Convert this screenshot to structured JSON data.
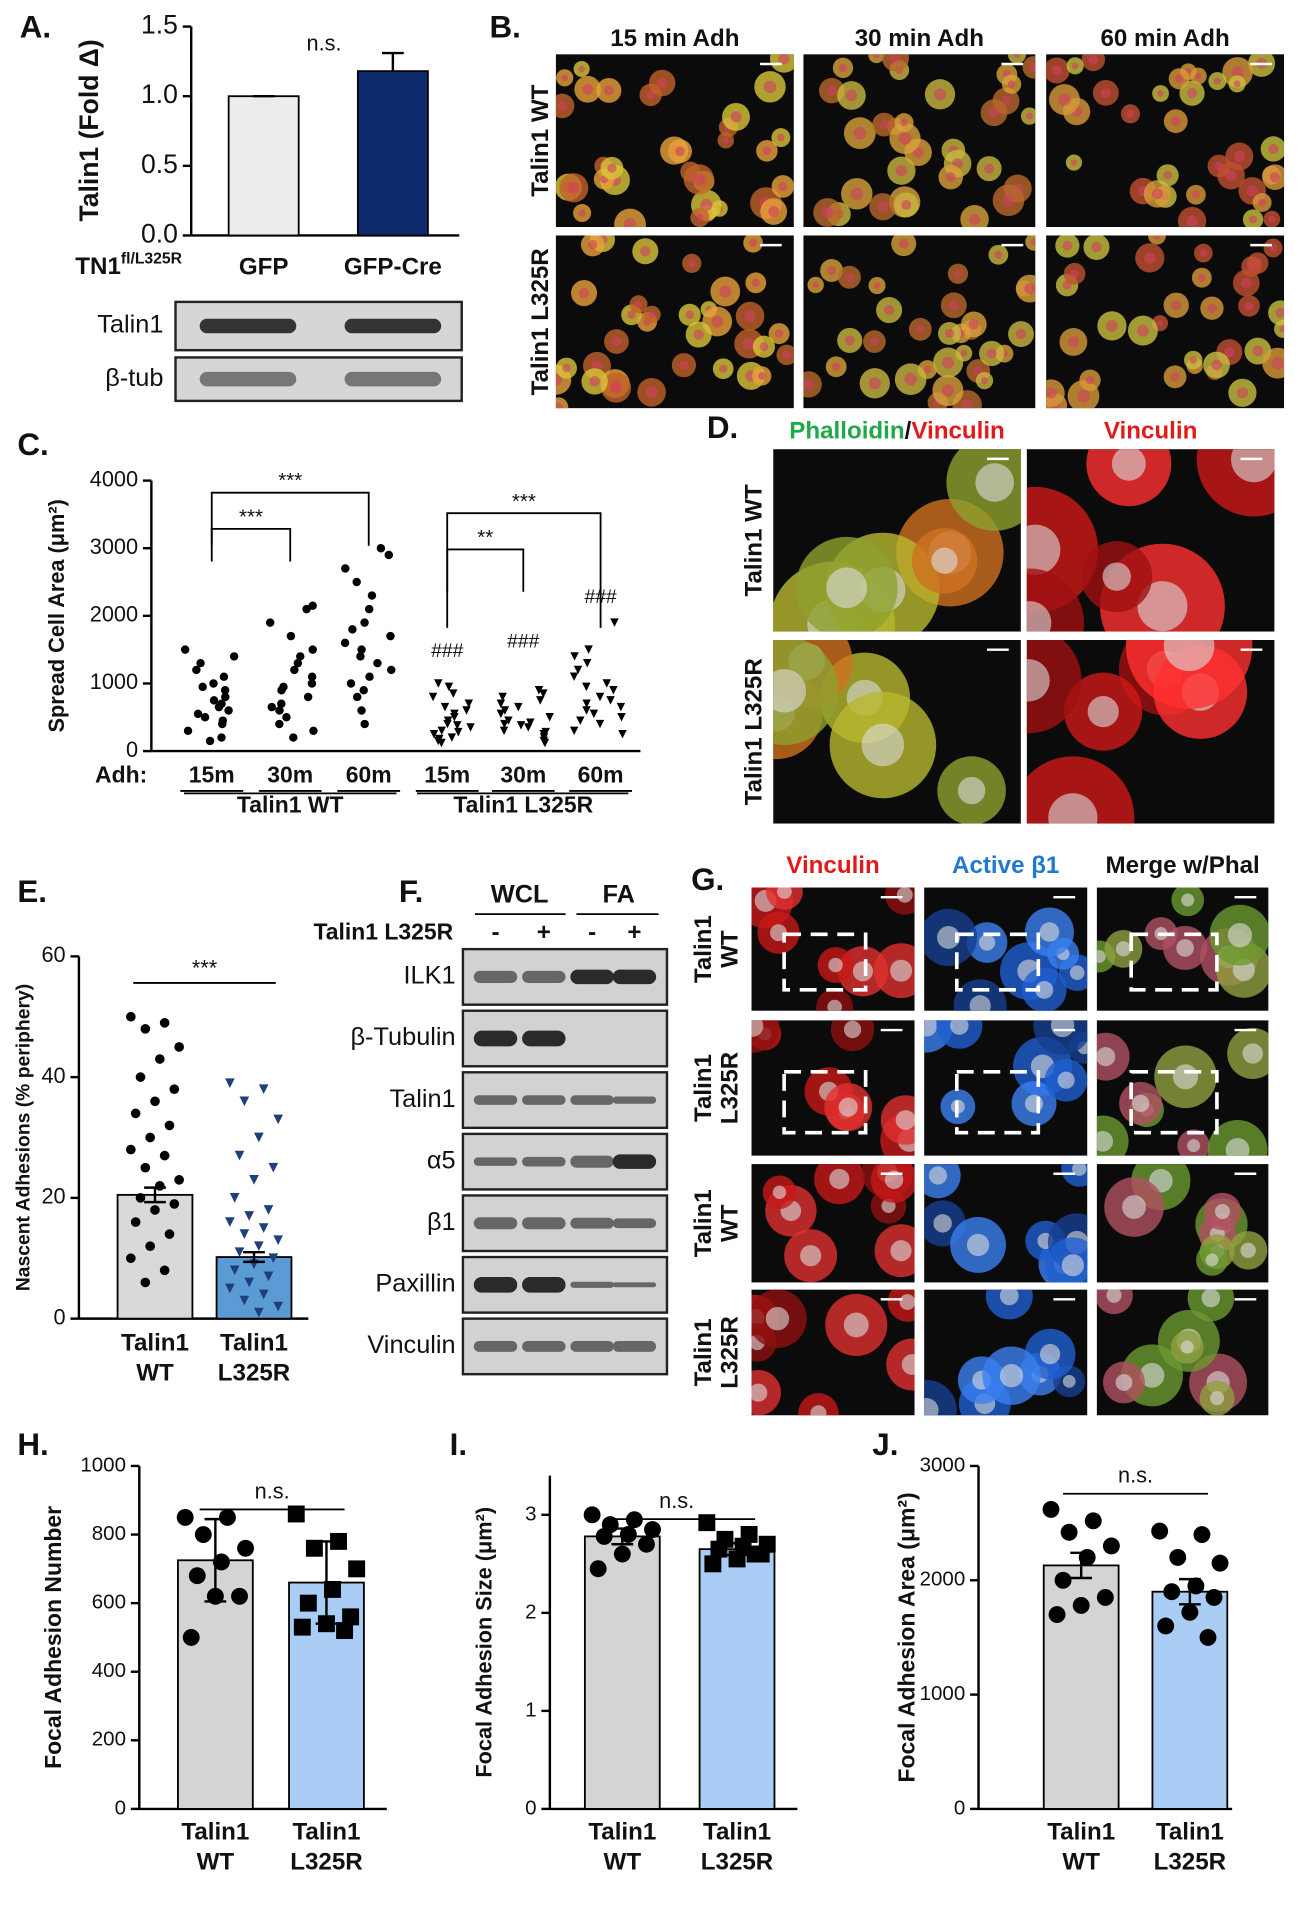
{
  "chart_data": [
    {
      "type": "bar",
      "panel": "A.",
      "ylabel": "Talin1 (Fold Δ)",
      "row_label": "TN1",
      "row_label_sup": "fl/L325R",
      "categories": [
        [
          "GFP"
        ],
        [
          "GFP-Cre"
        ]
      ],
      "values": [
        1.0,
        1.18
      ],
      "errors": [
        0,
        0.13
      ],
      "colors": [
        "#ececec",
        "#0c2a6b"
      ],
      "ylim": [
        0,
        1.5
      ],
      "yticks": [
        {
          "value": 0,
          "label": "0.0"
        },
        {
          "value": 0.5,
          "label": "0.5"
        },
        {
          "value": 1,
          "label": "1.0"
        },
        {
          "value": 1.5,
          "label": "1.5"
        }
      ],
      "annotations": [
        "n.s."
      ]
    },
    {
      "type": "strip",
      "panel": "C.",
      "ylabel": "Spread Cell Area (μm²)",
      "x_prefix": "Adh:",
      "categories": [
        "15m",
        "30m",
        "60m",
        "15m",
        "30m",
        "60m"
      ],
      "group_labels": [
        "Talin1 WT",
        "Talin1 L325R"
      ],
      "markers": [
        "circle",
        "circle",
        "circle",
        "triangle",
        "triangle",
        "triangle"
      ],
      "marker_color": "#000000",
      "points": [
        [
          1500,
          1400,
          1300,
          1200,
          1100,
          1000,
          950,
          900,
          800,
          750,
          700,
          650,
          600,
          550,
          500,
          450,
          400,
          300,
          200,
          150
        ],
        [
          2150,
          2100,
          1900,
          1700,
          1500,
          1400,
          1300,
          1200,
          1100,
          1000,
          950,
          900,
          800,
          700,
          650,
          600,
          500,
          400,
          300,
          200
        ],
        [
          3000,
          2900,
          2700,
          2500,
          2300,
          2100,
          1900,
          1800,
          1700,
          1600,
          1500,
          1400,
          1300,
          1200,
          1100,
          1000,
          900,
          800,
          600,
          400
        ],
        [
          1000,
          950,
          850,
          800,
          700,
          650,
          600,
          550,
          500,
          450,
          400,
          380,
          350,
          300,
          280,
          250,
          200,
          180,
          150,
          120
        ],
        [
          900,
          850,
          800,
          750,
          700,
          650,
          600,
          550,
          500,
          450,
          420,
          400,
          380,
          350,
          300,
          280,
          250,
          200,
          150,
          120
        ],
        [
          1900,
          1500,
          1400,
          1300,
          1200,
          1100,
          1000,
          950,
          900,
          800,
          750,
          700,
          650,
          600,
          550,
          500,
          450,
          400,
          300,
          250
        ]
      ],
      "ylim": [
        0,
        4000
      ],
      "yticks": [
        0,
        1000,
        2000,
        3000,
        4000
      ],
      "brackets": [
        "***",
        "***",
        "**",
        "***"
      ],
      "marks": [
        "###",
        "###",
        "###"
      ]
    },
    {
      "type": "bar",
      "panel": "E.",
      "ylabel": "Nascent Adhesions (% periphery)",
      "categories": [
        [
          "Talin1",
          "WT"
        ],
        [
          "Talin1",
          "L325R"
        ]
      ],
      "values": [
        20.5,
        10.2
      ],
      "errors": [
        1.2,
        0.8
      ],
      "colors": [
        "#d9d9d9",
        "#5b9bd5"
      ],
      "markers": [
        "circle",
        "triangle"
      ],
      "marker_colors": [
        "#000000",
        "#1f3f7a"
      ],
      "points": [
        [
          50,
          49,
          48,
          45,
          43,
          40,
          38,
          36,
          34,
          32,
          30,
          28,
          27,
          25,
          23,
          22,
          20,
          19,
          18,
          16,
          14,
          12,
          10,
          8,
          6
        ],
        [
          39,
          38,
          36,
          33,
          30,
          27,
          25,
          23,
          20,
          18,
          17,
          16,
          15,
          14,
          13,
          12,
          11,
          10,
          9,
          8,
          7,
          6,
          5,
          4,
          3,
          2,
          1
        ]
      ],
      "ylim": [
        0,
        60
      ],
      "yticks": [
        0,
        20,
        40,
        60
      ],
      "annotations": [
        "***"
      ]
    },
    {
      "type": "bar",
      "panel": "H.",
      "ylabel": "Focal Adhesion Number",
      "categories": [
        [
          "Talin1",
          "WT"
        ],
        [
          "Talin1",
          "L325R"
        ]
      ],
      "values": [
        725,
        660
      ],
      "errors": [
        120,
        120
      ],
      "colors": [
        "#d4d4d4",
        "#a9cdf5"
      ],
      "markers": [
        "circle",
        "square"
      ],
      "marker_colors": [
        "#000000",
        "#000000"
      ],
      "points": [
        [
          850,
          850,
          800,
          760,
          720,
          680,
          620,
          620,
          500
        ],
        [
          860,
          780,
          760,
          700,
          640,
          600,
          560,
          540,
          530,
          520
        ]
      ],
      "ylim": [
        0,
        1000
      ],
      "yticks": [
        0,
        200,
        400,
        600,
        800,
        1000
      ],
      "annotations": [
        "n.s."
      ]
    },
    {
      "type": "bar",
      "panel": "I.",
      "ylabel": "Focal Adhesion Size (μm²)",
      "categories": [
        [
          "Talin1",
          "WT"
        ],
        [
          "Talin1",
          "L325R"
        ]
      ],
      "values": [
        2.78,
        2.65
      ],
      "errors": [
        0.08,
        0.06
      ],
      "colors": [
        "#d4d4d4",
        "#a9cdf5"
      ],
      "markers": [
        "circle",
        "square"
      ],
      "marker_colors": [
        "#000000",
        "#000000"
      ],
      "points": [
        [
          3.0,
          2.95,
          2.9,
          2.85,
          2.8,
          2.78,
          2.7,
          2.6,
          2.45
        ],
        [
          2.92,
          2.8,
          2.75,
          2.7,
          2.68,
          2.65,
          2.6,
          2.55,
          2.5,
          2.6
        ]
      ],
      "ylim": [
        0,
        3.4
      ],
      "yticks": [
        0,
        1,
        2,
        3
      ],
      "annotations": [
        "n.s."
      ]
    },
    {
      "type": "bar",
      "panel": "J.",
      "ylabel": "Focal Adhesion Area (μm²)",
      "categories": [
        [
          "Talin1",
          "WT"
        ],
        [
          "Talin1",
          "L325R"
        ]
      ],
      "values": [
        2130,
        1900
      ],
      "errors": [
        110,
        110
      ],
      "colors": [
        "#d4d4d4",
        "#a9cdf5"
      ],
      "markers": [
        "circle",
        "circle"
      ],
      "marker_colors": [
        "#000000",
        "#000000"
      ],
      "points": [
        [
          2620,
          2520,
          2420,
          2300,
          2200,
          2000,
          1850,
          1780,
          1700
        ],
        [
          2430,
          2400,
          2200,
          2150,
          1950,
          1900,
          1850,
          1720,
          1600,
          1500
        ]
      ],
      "ylim": [
        0,
        3000
      ],
      "yticks": [
        0,
        1000,
        2000,
        3000
      ],
      "annotations": [
        "n.s."
      ]
    }
  ],
  "micrographs": [
    {
      "panel": "B.",
      "headers": [
        [
          {
            "text": "15 min Adh",
            "color": "#111111"
          }
        ],
        [
          {
            "text": "30 min Adh",
            "color": "#111111"
          }
        ],
        [
          {
            "text": "60 min Adh",
            "color": "#111111"
          }
        ]
      ],
      "rows": [
        [
          "Talin1 WT"
        ],
        [
          "Talin1 L325R"
        ]
      ]
    },
    {
      "panel": "D.",
      "headers": [
        [
          {
            "text": "Phalloidin",
            "color": "#21a84a"
          },
          {
            "text": "/",
            "color": "#111111"
          },
          {
            "text": "Vinculin",
            "color": "#e31a1c"
          }
        ],
        [
          {
            "text": "Vinculin",
            "color": "#e31a1c"
          }
        ]
      ],
      "rows": [
        [
          "Talin1 WT"
        ],
        [
          "Talin1 L325R"
        ]
      ]
    },
    {
      "panel": "G.",
      "headers": [
        [
          {
            "text": "Vinculin",
            "color": "#e31a1c"
          }
        ],
        [
          {
            "text": "Active β1",
            "color": "#1f78d1"
          }
        ],
        [
          {
            "text": "Merge w/Phal",
            "color": "#111111"
          }
        ]
      ],
      "rows": [
        [
          "Talin1",
          "WT"
        ],
        [
          "Talin1",
          "L325R"
        ],
        [
          "Talin1",
          "WT"
        ],
        [
          "Talin1",
          "L325R"
        ]
      ]
    }
  ],
  "blots": [
    {
      "rows": [
        "Talin1",
        "β-tub"
      ]
    },
    {
      "panel": "F.",
      "groups": [
        "WCL",
        "FA"
      ],
      "condition": "Talin1 L325R",
      "signs": [
        "-",
        "+",
        "-",
        "+"
      ],
      "rows": [
        "ILK1",
        "β-Tubulin",
        "Talin1",
        "α5",
        "β1",
        "Paxillin",
        "Vinculin"
      ]
    }
  ]
}
